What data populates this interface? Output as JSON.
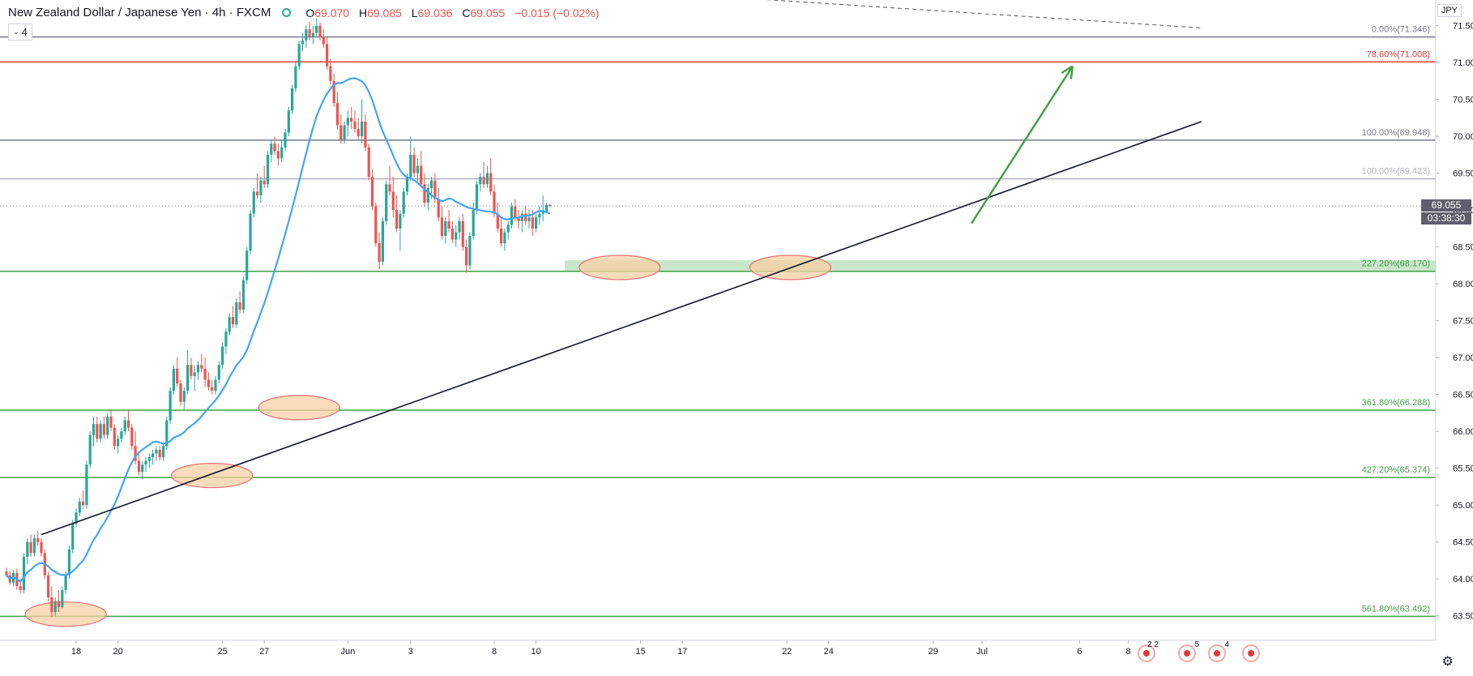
{
  "header": {
    "symbol": "New Zealand Dollar / Japanese Yen · 4h · FXCM",
    "open_label": "O",
    "open": "69.070",
    "high_label": "H",
    "high": "69.085",
    "low_label": "L",
    "low": "69.036",
    "close_label": "C",
    "close": "69.055",
    "change": "−0.015 (−0.02%)",
    "indicator_count": "4"
  },
  "currency": "JPY",
  "last_price": "69.055",
  "countdown": "03:38:30",
  "event_badges": [
    "2 2",
    "5",
    "4",
    ""
  ],
  "chart_data": {
    "type": "candlestick",
    "x_ticks": [
      {
        "label": "18",
        "bar": 20
      },
      {
        "label": "20",
        "bar": 32
      },
      {
        "label": "25",
        "bar": 62
      },
      {
        "label": "27",
        "bar": 74
      },
      {
        "label": "Jun",
        "bar": 98
      },
      {
        "label": "3",
        "bar": 116
      },
      {
        "label": "8",
        "bar": 140
      },
      {
        "label": "10",
        "bar": 152
      },
      {
        "label": "15",
        "bar": 182
      },
      {
        "label": "17",
        "bar": 194
      },
      {
        "label": "22",
        "bar": 224
      },
      {
        "label": "24",
        "bar": 236
      },
      {
        "label": "29",
        "bar": 266
      },
      {
        "label": "Jul",
        "bar": 280
      },
      {
        "label": "6",
        "bar": 308
      },
      {
        "label": "8",
        "bar": 322
      }
    ],
    "y_ticks": [
      "63.500",
      "64.000",
      "64.500",
      "65.000",
      "65.500",
      "66.000",
      "66.500",
      "67.000",
      "67.500",
      "68.000",
      "68.500",
      "69.000",
      "69.500",
      "70.000",
      "70.500",
      "71.000",
      "71.500"
    ],
    "ylim": [
      63.2,
      71.65
    ],
    "fib_levels": [
      {
        "label": "0.00%(71.346)",
        "value": 71.346,
        "color": "#787b86"
      },
      {
        "label": "78.60%(71.008)",
        "value": 71.008,
        "color": "#e53935"
      },
      {
        "label": "100.00%(69.948)",
        "value": 69.948,
        "color": "#787b86"
      },
      {
        "label": "100.00%(69.423)",
        "value": 69.423,
        "color": "#b2b5be"
      },
      {
        "label": "227.20%(68.170)",
        "value": 68.17,
        "color": "#43a047"
      },
      {
        "label": "361.80%(66.288)",
        "value": 66.288,
        "color": "#43a047"
      },
      {
        "label": "427.20%(65.374)",
        "value": 65.374,
        "color": "#43a047"
      },
      {
        "label": "561.80%(63.492)",
        "value": 63.492,
        "color": "#43a047"
      }
    ],
    "support_zone": [
      68.17,
      68.32
    ],
    "trendline": [
      {
        "bar": 10,
        "price": 64.6
      },
      {
        "bar": 343,
        "price": 70.2
      }
    ],
    "descending_line": [
      {
        "bar": 72,
        "price": 72.3
      },
      {
        "bar": 343,
        "price": 71.47
      }
    ],
    "projection_arrow": [
      {
        "bar": 277,
        "price": 68.82
      },
      {
        "bar": 306,
        "price": 70.95
      }
    ],
    "touch_ellipses": [
      {
        "bar": 17,
        "price": 63.5
      },
      {
        "bar": 59,
        "price": 65.38
      },
      {
        "bar": 84,
        "price": 66.3
      },
      {
        "bar": 176,
        "price": 68.2
      },
      {
        "bar": 225,
        "price": 68.2
      }
    ],
    "ohlc": [
      [
        64.1,
        64.15,
        64.02,
        64.05
      ],
      [
        64.05,
        64.1,
        63.92,
        63.95
      ],
      [
        63.95,
        64.12,
        63.9,
        64.08
      ],
      [
        64.08,
        64.14,
        63.85,
        63.9
      ],
      [
        63.9,
        64.0,
        63.8,
        63.85
      ],
      [
        63.85,
        64.35,
        63.8,
        64.3
      ],
      [
        64.3,
        64.55,
        64.2,
        64.5
      ],
      [
        64.5,
        64.6,
        64.3,
        64.35
      ],
      [
        64.35,
        64.6,
        64.3,
        64.55
      ],
      [
        64.55,
        64.65,
        64.45,
        64.5
      ],
      [
        64.5,
        64.55,
        64.3,
        64.35
      ],
      [
        64.35,
        64.4,
        64.0,
        64.05
      ],
      [
        64.05,
        64.1,
        63.7,
        63.75
      ],
      [
        63.75,
        63.9,
        63.48,
        63.55
      ],
      [
        63.55,
        63.75,
        63.5,
        63.7
      ],
      [
        63.7,
        63.85,
        63.55,
        63.62
      ],
      [
        63.62,
        63.9,
        63.6,
        63.85
      ],
      [
        63.85,
        64.1,
        63.8,
        64.05
      ],
      [
        64.05,
        64.45,
        64.0,
        64.4
      ],
      [
        64.4,
        64.8,
        64.35,
        64.75
      ],
      [
        64.75,
        64.95,
        64.7,
        64.9
      ],
      [
        64.9,
        65.1,
        64.85,
        65.05
      ],
      [
        65.05,
        65.2,
        64.95,
        65.0
      ],
      [
        65.0,
        65.6,
        64.95,
        65.55
      ],
      [
        65.55,
        66.0,
        65.5,
        65.95
      ],
      [
        65.95,
        66.2,
        65.8,
        66.1
      ],
      [
        66.1,
        66.2,
        65.85,
        65.9
      ],
      [
        65.9,
        66.15,
        65.85,
        66.1
      ],
      [
        66.1,
        66.2,
        65.9,
        65.95
      ],
      [
        65.95,
        66.25,
        65.9,
        66.2
      ],
      [
        66.2,
        66.3,
        66.0,
        66.05
      ],
      [
        66.05,
        66.1,
        65.75,
        65.8
      ],
      [
        65.8,
        65.95,
        65.7,
        65.9
      ],
      [
        65.9,
        66.05,
        65.85,
        66.0
      ],
      [
        66.0,
        66.2,
        65.95,
        66.15
      ],
      [
        66.15,
        66.3,
        66.0,
        66.05
      ],
      [
        66.05,
        66.1,
        65.75,
        65.8
      ],
      [
        65.8,
        66.0,
        65.55,
        65.6
      ],
      [
        65.6,
        65.7,
        65.4,
        65.45
      ],
      [
        65.45,
        65.6,
        65.35,
        65.55
      ],
      [
        65.55,
        65.65,
        65.45,
        65.6
      ],
      [
        65.6,
        65.7,
        65.5,
        65.65
      ],
      [
        65.65,
        65.75,
        65.55,
        65.7
      ],
      [
        65.7,
        65.8,
        65.6,
        65.75
      ],
      [
        65.75,
        65.8,
        65.6,
        65.65
      ],
      [
        65.65,
        65.85,
        65.6,
        65.8
      ],
      [
        65.8,
        66.2,
        65.75,
        66.15
      ],
      [
        66.15,
        66.6,
        66.1,
        66.55
      ],
      [
        66.55,
        66.9,
        66.5,
        66.85
      ],
      [
        66.85,
        67.0,
        66.6,
        66.65
      ],
      [
        66.65,
        66.7,
        66.35,
        66.4
      ],
      [
        66.4,
        66.6,
        66.3,
        66.55
      ],
      [
        66.55,
        67.1,
        66.5,
        66.9
      ],
      [
        66.9,
        67.0,
        66.7,
        66.75
      ],
      [
        66.75,
        66.9,
        66.55,
        66.8
      ],
      [
        66.8,
        66.95,
        66.7,
        66.9
      ],
      [
        66.9,
        67.05,
        66.8,
        66.85
      ],
      [
        66.85,
        67.0,
        66.6,
        66.7
      ],
      [
        66.7,
        66.8,
        66.55,
        66.6
      ],
      [
        66.6,
        66.7,
        66.5,
        66.55
      ],
      [
        66.55,
        66.75,
        66.5,
        66.7
      ],
      [
        66.7,
        66.95,
        66.65,
        66.9
      ],
      [
        66.9,
        67.2,
        66.85,
        67.15
      ],
      [
        67.15,
        67.4,
        67.05,
        67.35
      ],
      [
        67.35,
        67.6,
        67.3,
        67.55
      ],
      [
        67.55,
        67.7,
        67.4,
        67.45
      ],
      [
        67.45,
        67.8,
        67.4,
        67.75
      ],
      [
        67.75,
        67.9,
        67.6,
        67.65
      ],
      [
        67.65,
        68.1,
        67.6,
        68.05
      ],
      [
        68.05,
        68.5,
        68.0,
        68.45
      ],
      [
        68.45,
        69.0,
        68.4,
        68.95
      ],
      [
        68.95,
        69.3,
        68.9,
        69.25
      ],
      [
        69.25,
        69.5,
        69.15,
        69.2
      ],
      [
        69.2,
        69.45,
        69.1,
        69.4
      ],
      [
        69.4,
        69.6,
        69.3,
        69.35
      ],
      [
        69.35,
        69.8,
        69.3,
        69.75
      ],
      [
        69.75,
        69.95,
        69.65,
        69.9
      ],
      [
        69.9,
        70.0,
        69.75,
        69.8
      ],
      [
        69.8,
        69.9,
        69.6,
        69.7
      ],
      [
        69.7,
        69.95,
        69.65,
        69.85
      ],
      [
        69.85,
        70.1,
        69.8,
        70.05
      ],
      [
        70.05,
        70.4,
        70.0,
        70.35
      ],
      [
        70.35,
        70.7,
        70.3,
        70.65
      ],
      [
        70.65,
        71.0,
        70.6,
        70.95
      ],
      [
        70.95,
        71.3,
        70.9,
        71.25
      ],
      [
        71.25,
        71.4,
        71.15,
        71.3
      ],
      [
        71.3,
        71.5,
        71.2,
        71.45
      ],
      [
        71.45,
        71.55,
        71.3,
        71.35
      ],
      [
        71.35,
        71.5,
        71.25,
        71.4
      ],
      [
        71.4,
        71.6,
        71.35,
        71.5
      ],
      [
        71.5,
        71.55,
        71.3,
        71.35
      ],
      [
        71.35,
        71.45,
        71.2,
        71.25
      ],
      [
        71.25,
        71.35,
        70.9,
        70.95
      ],
      [
        70.95,
        71.05,
        70.7,
        70.75
      ],
      [
        70.75,
        70.85,
        70.4,
        70.45
      ],
      [
        70.45,
        70.6,
        70.1,
        70.15
      ],
      [
        70.15,
        70.3,
        69.9,
        69.95
      ],
      [
        69.95,
        70.2,
        69.9,
        70.15
      ],
      [
        70.15,
        70.35,
        70.0,
        70.25
      ],
      [
        70.25,
        70.4,
        70.1,
        70.2
      ],
      [
        70.2,
        70.35,
        70.05,
        70.1
      ],
      [
        70.1,
        70.25,
        69.95,
        70.0
      ],
      [
        70.0,
        70.5,
        69.9,
        70.2
      ],
      [
        70.2,
        70.3,
        69.8,
        69.85
      ],
      [
        69.85,
        69.9,
        69.4,
        69.45
      ],
      [
        69.45,
        69.55,
        69.0,
        69.05
      ],
      [
        69.05,
        69.1,
        68.5,
        68.55
      ],
      [
        68.55,
        68.7,
        68.2,
        68.3
      ],
      [
        68.3,
        68.9,
        68.25,
        68.85
      ],
      [
        68.85,
        69.4,
        68.8,
        69.35
      ],
      [
        69.35,
        69.6,
        69.2,
        69.25
      ],
      [
        69.25,
        69.45,
        68.9,
        69.0
      ],
      [
        69.0,
        69.2,
        68.7,
        68.75
      ],
      [
        68.75,
        69.0,
        68.45,
        68.95
      ],
      [
        68.95,
        69.3,
        68.9,
        69.25
      ],
      [
        69.25,
        69.5,
        69.2,
        69.45
      ],
      [
        69.45,
        70.0,
        69.4,
        69.75
      ],
      [
        69.75,
        69.85,
        69.45,
        69.5
      ],
      [
        69.5,
        69.7,
        69.35,
        69.6
      ],
      [
        69.6,
        69.8,
        69.3,
        69.35
      ],
      [
        69.35,
        69.5,
        69.05,
        69.1
      ],
      [
        69.1,
        69.35,
        69.0,
        69.3
      ],
      [
        69.3,
        69.45,
        69.15,
        69.4
      ],
      [
        69.4,
        69.5,
        69.1,
        69.15
      ],
      [
        69.15,
        69.3,
        68.85,
        68.9
      ],
      [
        68.9,
        69.05,
        68.6,
        68.65
      ],
      [
        68.65,
        68.9,
        68.55,
        68.85
      ],
      [
        68.85,
        69.0,
        68.7,
        68.75
      ],
      [
        68.75,
        68.85,
        68.55,
        68.6
      ],
      [
        68.6,
        68.8,
        68.5,
        68.7
      ],
      [
        68.7,
        68.9,
        68.6,
        68.85
      ],
      [
        68.85,
        68.95,
        68.45,
        68.5
      ],
      [
        68.5,
        68.6,
        68.15,
        68.25
      ],
      [
        68.25,
        68.7,
        68.2,
        68.65
      ],
      [
        68.65,
        69.1,
        68.6,
        69.0
      ],
      [
        69.0,
        69.4,
        68.95,
        69.35
      ],
      [
        69.35,
        69.5,
        69.25,
        69.45
      ],
      [
        69.45,
        69.65,
        69.3,
        69.35
      ],
      [
        69.35,
        69.6,
        69.3,
        69.5
      ],
      [
        69.5,
        69.7,
        69.2,
        69.25
      ],
      [
        69.25,
        69.35,
        68.9,
        68.95
      ],
      [
        68.95,
        69.1,
        68.7,
        68.75
      ],
      [
        68.75,
        68.9,
        68.5,
        68.55
      ],
      [
        68.55,
        68.75,
        68.45,
        68.7
      ],
      [
        68.7,
        68.85,
        68.6,
        68.8
      ],
      [
        68.8,
        69.1,
        68.75,
        69.05
      ],
      [
        69.05,
        69.15,
        68.85,
        68.9
      ],
      [
        68.9,
        69.0,
        68.75,
        68.85
      ],
      [
        68.85,
        69.0,
        68.7,
        68.95
      ],
      [
        68.95,
        69.05,
        68.8,
        68.85
      ],
      [
        68.85,
        69.0,
        68.75,
        68.9
      ],
      [
        68.9,
        69.0,
        68.65,
        68.75
      ],
      [
        68.75,
        68.95,
        68.7,
        68.9
      ],
      [
        68.9,
        69.05,
        68.8,
        68.95
      ],
      [
        68.95,
        69.2,
        68.85,
        68.98
      ],
      [
        68.98,
        69.1,
        69.0,
        69.07
      ],
      [
        69.07,
        69.085,
        69.036,
        69.055
      ]
    ],
    "ma_color": "#42a5f5",
    "bull_color": "#26a69a",
    "bear_color": "#ef5350"
  }
}
